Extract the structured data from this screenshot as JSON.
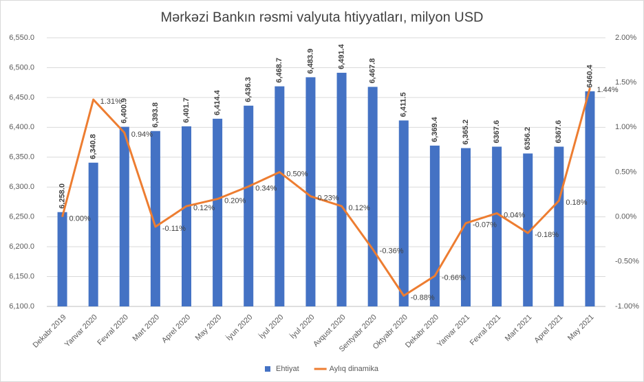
{
  "chart_data": {
    "type": "combo",
    "title": "Mərkəzi Bankın rəsmi valyuta htiyyatları, milyon USD",
    "categories": [
      "Dekabr 2019",
      "Yanvar 2020",
      "Fevral 2020",
      "Mart 2020",
      "Aprel 2020",
      "May 2020",
      "İyun 2020",
      "İyul 2020",
      "İyul 2020",
      "Avqust 2020",
      "Sentyabr 2020",
      "Oktyabr 2020",
      "Dekabr 2020",
      "Yanvar 2021",
      "Fevral 2021",
      "Mart 2021",
      "Aprel 2021",
      "May 2021"
    ],
    "series": [
      {
        "name": "Ehtiyat",
        "type": "bar",
        "color": "#4472c4",
        "values": [
          6258.0,
          6340.8,
          6400.9,
          6393.8,
          6401.7,
          6414.4,
          6436.3,
          6468.7,
          6483.9,
          6491.4,
          6467.8,
          6411.5,
          6369.4,
          6365.2,
          6367.6,
          6356.2,
          6367.6,
          6460.4
        ],
        "value_labels": [
          "6,258.0",
          "6,340.8",
          "6,400.9",
          "6,393.8",
          "6,401.7",
          "6,414.4",
          "6,436.3",
          "6,468.7",
          "6,483.9",
          "6,491.4",
          "6,467.8",
          "6,411.5",
          "6,369.4",
          "6,365.2",
          "6367.6",
          "6356.2",
          "6367.6",
          "6460.4"
        ]
      },
      {
        "name": "Aylıq dinamika",
        "type": "line",
        "axis": "y2",
        "color": "#ed7d31",
        "values": [
          0.0,
          1.31,
          0.94,
          -0.11,
          0.12,
          0.2,
          0.34,
          0.5,
          0.23,
          0.12,
          -0.36,
          -0.88,
          -0.66,
          -0.07,
          0.04,
          -0.18,
          0.18,
          1.44
        ],
        "value_labels": [
          "0.00%",
          "1.31%",
          "0.94%",
          "-0.11%",
          "0.12%",
          "0.20%",
          "0.34%",
          "0.50%",
          "0.23%",
          "0.12%",
          "-0.36%",
          "-0.88%",
          "-0.66%",
          "-0.07%",
          "0.04%",
          "-0.18%",
          "0.18%",
          "1.44%"
        ]
      }
    ],
    "ylim": [
      6100,
      6550
    ],
    "yticks": [
      {
        "value": 6100,
        "label": "6,100.0"
      },
      {
        "value": 6150,
        "label": "6,150.0"
      },
      {
        "value": 6200,
        "label": "6,200.0"
      },
      {
        "value": 6250,
        "label": "6,250.0"
      },
      {
        "value": 6300,
        "label": "6,300.0"
      },
      {
        "value": 6350,
        "label": "6,350.0"
      },
      {
        "value": 6400,
        "label": "6,400.0"
      },
      {
        "value": 6450,
        "label": "6,450.0"
      },
      {
        "value": 6500,
        "label": "6,500.0"
      },
      {
        "value": 6550,
        "label": "6,550.0"
      }
    ],
    "y2lim": [
      -1,
      2
    ],
    "y2ticks": [
      {
        "value": -1,
        "label": "-1.00%"
      },
      {
        "value": -0.5,
        "label": "-0.50%"
      },
      {
        "value": 0,
        "label": "0.00%"
      },
      {
        "value": 0.5,
        "label": "0.50%"
      },
      {
        "value": 1,
        "label": "1.00%"
      },
      {
        "value": 1.5,
        "label": "1.50%"
      },
      {
        "value": 2,
        "label": "2.00%"
      }
    ],
    "grid": true,
    "legend": "bottom"
  }
}
